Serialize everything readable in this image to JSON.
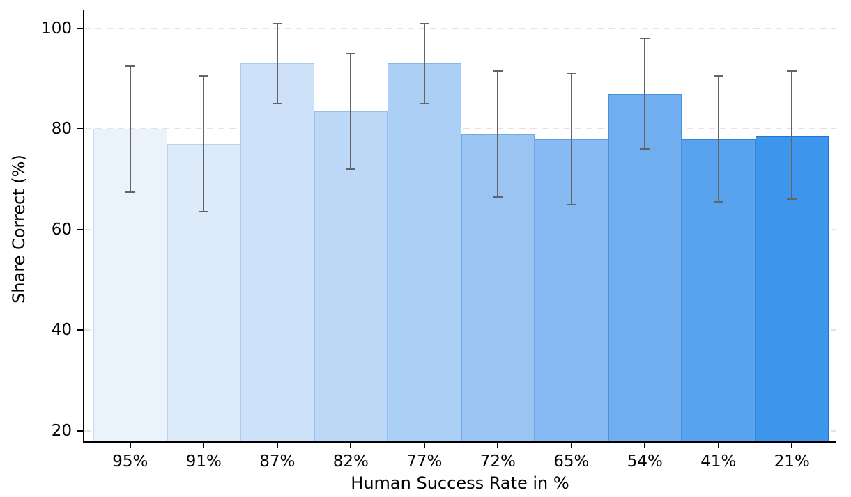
{
  "chart_data": {
    "type": "bar",
    "title": "",
    "xlabel": "Human Success Rate in %",
    "ylabel": "Share Correct (%)",
    "categories": [
      "95%",
      "91%",
      "87%",
      "82%",
      "77%",
      "72%",
      "65%",
      "54%",
      "41%",
      "21%"
    ],
    "values": [
      80,
      77,
      93,
      83.5,
      93,
      79,
      78,
      87,
      78,
      78.5
    ],
    "error_low": [
      67.5,
      63.5,
      85,
      72,
      85,
      66.5,
      65,
      76,
      65.5,
      66
    ],
    "error_high": [
      92.5,
      90.5,
      101,
      95,
      101,
      91.5,
      91,
      98,
      90.5,
      91.5
    ],
    "ylim": [
      17.9,
      103.7
    ],
    "yticks": [
      20,
      40,
      60,
      80,
      100
    ],
    "ytick_labels": [
      "20",
      "40",
      "60",
      "80",
      "100"
    ],
    "grid": "horizontal dashed",
    "legend": "none",
    "bar_colors": [
      "#EAF2FC",
      "#DCEAFA",
      "#CDE1F8",
      "#BDD8F7",
      "#ACCFF5",
      "#9AC5F3",
      "#87BAF2",
      "#71AEF0",
      "#59A2EE",
      "#3E95EC"
    ],
    "bar_edge_colors": [
      "#C8DCF1",
      "#BAD3EF",
      "#A9C9ED",
      "#97BFEB",
      "#85B5E9",
      "#72AAE7",
      "#5E9FE5",
      "#4792E3",
      "#2F86E1",
      "#1877D6"
    ],
    "error_color": "#646464",
    "grid_color": "#e3e3e3",
    "axis_color": "#000000"
  }
}
